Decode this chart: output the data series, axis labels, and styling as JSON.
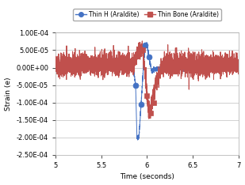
{
  "title": "",
  "xlabel": "Time (seconds)",
  "ylabel": "Strain (e)",
  "xlim": [
    5,
    7
  ],
  "ylim": [
    -0.00025,
    0.0001
  ],
  "yticks": [
    -0.00025,
    -0.0002,
    -0.00015,
    -0.0001,
    -5e-05,
    0.0,
    5e-05,
    0.0001
  ],
  "xticks": [
    5,
    5.5,
    6,
    6.5,
    7
  ],
  "legend": [
    "Thin H (Araldite)",
    "Thin Bone (Araldite)"
  ],
  "blue_color": "#4472C4",
  "red_color": "#C0504D",
  "background_color": "#FFFFFF",
  "plot_bg_color": "#FFFFFF",
  "grid_color": "#BFBFBF",
  "seed_blue": 7,
  "seed_red": 13
}
